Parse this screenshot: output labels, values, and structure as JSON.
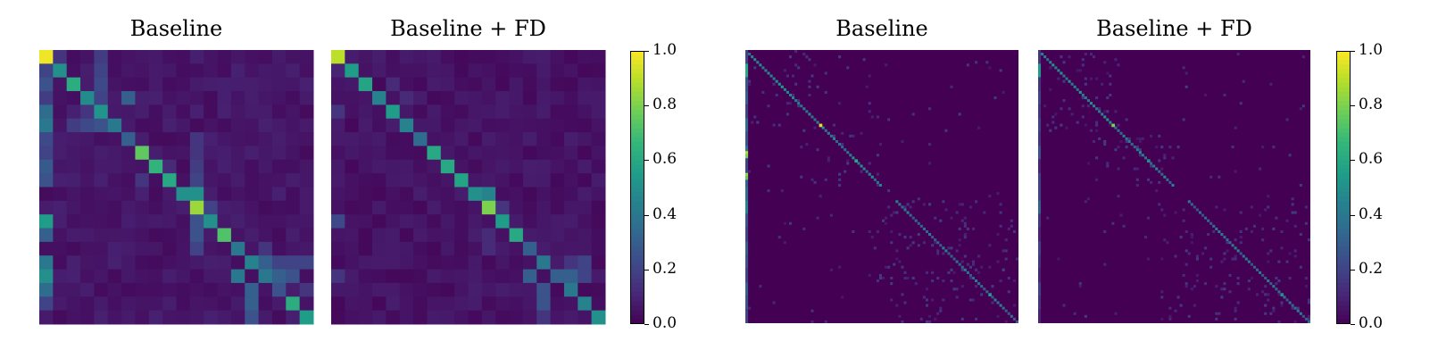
{
  "colormap": {
    "name": "viridis",
    "stops": [
      "#440154",
      "#482878",
      "#3e4a89",
      "#31688e",
      "#26828e",
      "#1f9e89",
      "#35b779",
      "#6ece58",
      "#b5de2b",
      "#fde725"
    ]
  },
  "chart_data": [
    {
      "type": "heatmap",
      "title": "Baseline",
      "n": 20,
      "background": 0.03,
      "diagonal": [
        0.98,
        0.5,
        0.62,
        0.48,
        0.52,
        0.4,
        0.3,
        0.75,
        0.65,
        0.6,
        0.5,
        0.85,
        0.5,
        0.72,
        0.4,
        0.45,
        0.48,
        0.25,
        0.62,
        0.55
      ],
      "off_diagonal": [
        {
          "row": 1,
          "col": 0,
          "v": 0.2
        },
        {
          "row": 2,
          "col": 0,
          "v": 0.25
        },
        {
          "row": 3,
          "col": 0,
          "v": 0.18
        },
        {
          "row": 4,
          "col": 0,
          "v": 0.35
        },
        {
          "row": 5,
          "col": 0,
          "v": 0.4
        },
        {
          "row": 6,
          "col": 0,
          "v": 0.22
        },
        {
          "row": 7,
          "col": 0,
          "v": 0.2
        },
        {
          "row": 8,
          "col": 0,
          "v": 0.28
        },
        {
          "row": 9,
          "col": 0,
          "v": 0.25
        },
        {
          "row": 12,
          "col": 0,
          "v": 0.55
        },
        {
          "row": 13,
          "col": 0,
          "v": 0.3
        },
        {
          "row": 15,
          "col": 0,
          "v": 0.4
        },
        {
          "row": 16,
          "col": 0,
          "v": 0.5
        },
        {
          "row": 17,
          "col": 0,
          "v": 0.35
        },
        {
          "row": 18,
          "col": 0,
          "v": 0.2
        },
        {
          "row": 0,
          "col": 1,
          "v": 0.15
        },
        {
          "row": 0,
          "col": 4,
          "v": 0.18
        },
        {
          "row": 1,
          "col": 4,
          "v": 0.2
        },
        {
          "row": 2,
          "col": 4,
          "v": 0.22
        },
        {
          "row": 3,
          "col": 4,
          "v": 0.2
        },
        {
          "row": 3,
          "col": 6,
          "v": 0.3
        },
        {
          "row": 5,
          "col": 2,
          "v": 0.18
        },
        {
          "row": 5,
          "col": 3,
          "v": 0.22
        },
        {
          "row": 5,
          "col": 4,
          "v": 0.25
        },
        {
          "row": 4,
          "col": 3,
          "v": 0.15
        },
        {
          "row": 10,
          "col": 11,
          "v": 0.5
        },
        {
          "row": 11,
          "col": 12,
          "v": 0.2
        },
        {
          "row": 6,
          "col": 11,
          "v": 0.15
        },
        {
          "row": 7,
          "col": 11,
          "v": 0.15
        },
        {
          "row": 8,
          "col": 11,
          "v": 0.18
        },
        {
          "row": 9,
          "col": 11,
          "v": 0.2
        },
        {
          "row": 12,
          "col": 11,
          "v": 0.25
        },
        {
          "row": 13,
          "col": 11,
          "v": 0.25
        },
        {
          "row": 14,
          "col": 11,
          "v": 0.2
        },
        {
          "row": 15,
          "col": 15,
          "v": 0.45
        },
        {
          "row": 16,
          "col": 14,
          "v": 0.4
        },
        {
          "row": 16,
          "col": 16,
          "v": 0.4
        },
        {
          "row": 15,
          "col": 16,
          "v": 0.3
        },
        {
          "row": 16,
          "col": 17,
          "v": 0.3
        },
        {
          "row": 16,
          "col": 18,
          "v": 0.25
        },
        {
          "row": 15,
          "col": 17,
          "v": 0.2
        },
        {
          "row": 15,
          "col": 18,
          "v": 0.2
        },
        {
          "row": 15,
          "col": 19,
          "v": 0.2
        },
        {
          "row": 17,
          "col": 15,
          "v": 0.3
        },
        {
          "row": 18,
          "col": 15,
          "v": 0.3
        },
        {
          "row": 19,
          "col": 15,
          "v": 0.25
        },
        {
          "row": 14,
          "col": 16,
          "v": 0.15
        },
        {
          "row": 17,
          "col": 19,
          "v": 0.15
        },
        {
          "row": 9,
          "col": 7,
          "v": 0.15
        },
        {
          "row": 8,
          "col": 9,
          "v": 0.12
        }
      ]
    },
    {
      "type": "heatmap",
      "title": "Baseline + FD",
      "n": 20,
      "background": 0.02,
      "diagonal": [
        0.9,
        0.55,
        0.58,
        0.45,
        0.55,
        0.45,
        0.35,
        0.6,
        0.6,
        0.58,
        0.5,
        0.8,
        0.55,
        0.6,
        0.3,
        0.45,
        0.4,
        0.4,
        0.45,
        0.5
      ],
      "off_diagonal": [
        {
          "row": 1,
          "col": 0,
          "v": 0.1
        },
        {
          "row": 4,
          "col": 0,
          "v": 0.15
        },
        {
          "row": 12,
          "col": 0,
          "v": 0.22
        },
        {
          "row": 16,
          "col": 0,
          "v": 0.15
        },
        {
          "row": 2,
          "col": 4,
          "v": 0.12
        },
        {
          "row": 3,
          "col": 5,
          "v": 0.12
        },
        {
          "row": 10,
          "col": 11,
          "v": 0.45
        },
        {
          "row": 11,
          "col": 12,
          "v": 0.15
        },
        {
          "row": 15,
          "col": 15,
          "v": 0.4
        },
        {
          "row": 16,
          "col": 14,
          "v": 0.3
        },
        {
          "row": 16,
          "col": 16,
          "v": 0.3
        },
        {
          "row": 16,
          "col": 17,
          "v": 0.3
        },
        {
          "row": 16,
          "col": 18,
          "v": 0.2
        },
        {
          "row": 15,
          "col": 18,
          "v": 0.2
        },
        {
          "row": 15,
          "col": 17,
          "v": 0.15
        },
        {
          "row": 17,
          "col": 15,
          "v": 0.25
        },
        {
          "row": 18,
          "col": 15,
          "v": 0.25
        },
        {
          "row": 19,
          "col": 15,
          "v": 0.15
        },
        {
          "row": 13,
          "col": 11,
          "v": 0.12
        },
        {
          "row": 14,
          "col": 11,
          "v": 0.12
        }
      ]
    },
    {
      "type": "heatmap",
      "title": "Baseline",
      "n": 100,
      "background": 0.0,
      "diagonal_blocks": [
        {
          "start": 1,
          "end": 30,
          "v": 0.45
        },
        {
          "start": 30,
          "end": 50,
          "v": 0.4
        },
        {
          "start": 55,
          "end": 100,
          "v": 0.35
        }
      ],
      "diagonal_peaks": [
        {
          "index": 27,
          "v": 0.95
        },
        {
          "index": 40,
          "v": 0.6
        },
        {
          "index": 89,
          "v": 0.55
        }
      ],
      "first_column": [
        0.2,
        0.6,
        0.25,
        0.3,
        0.2,
        0.35,
        0.25,
        0.4,
        0.2,
        0.3,
        0.35,
        0.45,
        0.25,
        0.2,
        0.3,
        0.25,
        0.2,
        0.3,
        0.25,
        0.2
      ],
      "first_column_peaks": [
        {
          "row": 37,
          "v": 0.9
        },
        {
          "row": 38,
          "v": 0.8
        },
        {
          "row": 45,
          "v": 0.85
        },
        {
          "row": 46,
          "v": 0.75
        }
      ]
    },
    {
      "type": "heatmap",
      "title": "Baseline + FD",
      "n": 100,
      "background": 0.0,
      "diagonal_blocks": [
        {
          "start": 1,
          "end": 30,
          "v": 0.45
        },
        {
          "start": 30,
          "end": 50,
          "v": 0.4
        },
        {
          "start": 55,
          "end": 100,
          "v": 0.35
        }
      ],
      "diagonal_peaks": [
        {
          "index": 27,
          "v": 0.8
        },
        {
          "index": 40,
          "v": 0.5
        },
        {
          "index": 89,
          "v": 0.5
        }
      ],
      "first_column": [
        0.15,
        0.55,
        0.15,
        0.2,
        0.15,
        0.2,
        0.15,
        0.25,
        0.1,
        0.2,
        0.2,
        0.3,
        0.15,
        0.1,
        0.2,
        0.15,
        0.1,
        0.2,
        0.15,
        0.1
      ],
      "first_column_peaks": []
    }
  ],
  "colorbars": [
    {
      "ticks": [
        "1.0",
        "0.8",
        "0.6",
        "0.4",
        "0.2",
        "0.0"
      ],
      "range": [
        0,
        1
      ]
    },
    {
      "ticks": [
        "1.0",
        "0.8",
        "0.6",
        "0.4",
        "0.2",
        "0.0"
      ],
      "range": [
        0,
        1
      ]
    }
  ]
}
